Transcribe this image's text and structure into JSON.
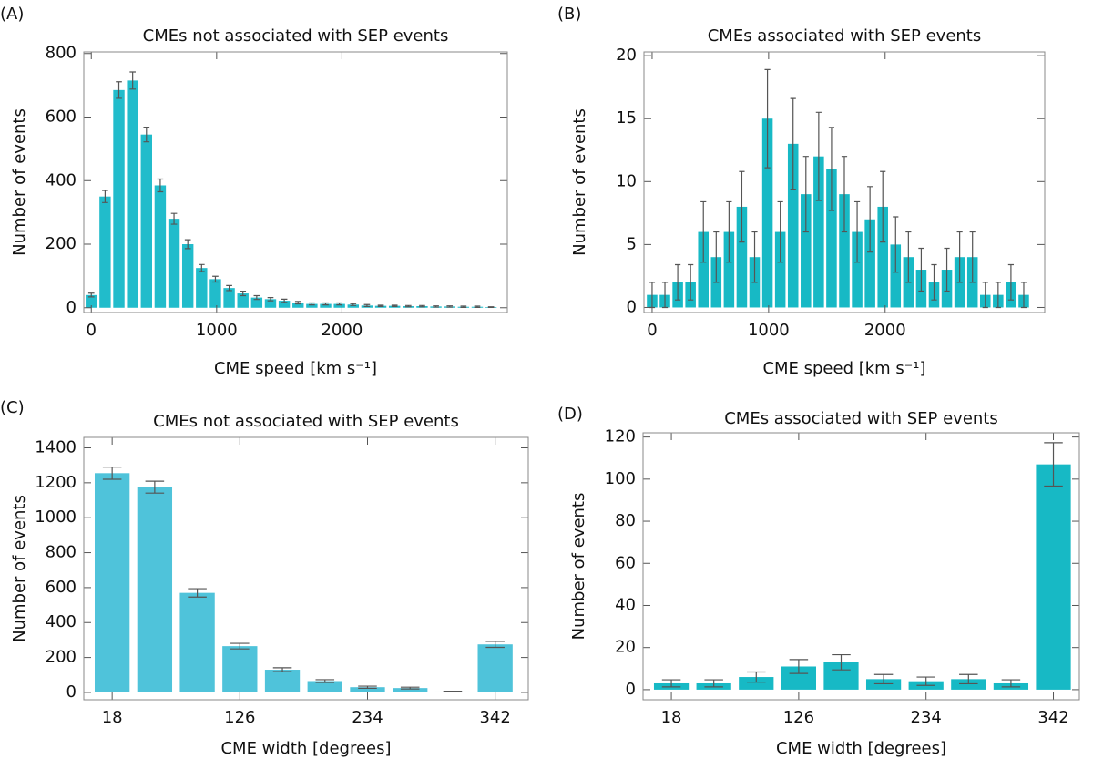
{
  "chart_data": [
    {
      "type": "histogram",
      "panel": "(A)",
      "title": "CMEs not associated with SEP events",
      "xlabel": "CME speed [km s⁻¹]",
      "ylabel": "Number of events",
      "color": "#21bccb",
      "bins": [
        -55,
        55,
        165,
        275,
        385,
        495,
        605,
        715,
        825,
        935,
        1045,
        1155,
        1265,
        1375,
        1485,
        1595,
        1705,
        1815,
        1925,
        2035,
        2145,
        2255,
        2365,
        2475,
        2585,
        2695,
        2805,
        2915,
        3025,
        3135,
        3245
      ],
      "values": [
        40,
        350,
        685,
        715,
        545,
        385,
        280,
        200,
        125,
        90,
        62,
        45,
        32,
        27,
        22,
        16,
        12,
        12,
        12,
        10,
        7,
        6,
        6,
        5,
        5,
        4,
        4,
        3,
        3,
        2
      ],
      "errors": [
        6,
        19,
        26,
        27,
        23,
        20,
        17,
        14,
        11,
        9,
        8,
        7,
        6,
        5,
        5,
        4,
        3,
        3,
        3,
        3,
        3,
        2,
        2,
        2,
        2,
        2,
        2,
        2,
        2,
        1
      ],
      "xlim": [
        -60,
        3320
      ],
      "ylim": [
        -15,
        805
      ],
      "xticks": [
        0,
        1000,
        2000
      ],
      "yticks": [
        0,
        200,
        400,
        600,
        800
      ]
    },
    {
      "type": "histogram",
      "panel": "(B)",
      "title": "CMEs associated with SEP events",
      "xlabel": "CME speed [km s⁻¹]",
      "ylabel": "Number of events",
      "color": "#17b9c5",
      "bins": [
        -55,
        55,
        165,
        275,
        385,
        495,
        605,
        715,
        825,
        935,
        1045,
        1155,
        1265,
        1375,
        1485,
        1595,
        1705,
        1815,
        1925,
        2035,
        2145,
        2255,
        2365,
        2475,
        2585,
        2695,
        2805,
        2915,
        3025,
        3135,
        3245
      ],
      "values": [
        1,
        1,
        2,
        2,
        6,
        4,
        6,
        8,
        4,
        15,
        6,
        13,
        9,
        12,
        11,
        9,
        6,
        7,
        8,
        5,
        4,
        3,
        2,
        3,
        4,
        4,
        1,
        1,
        2,
        1
      ],
      "errors": [
        1,
        1,
        1.4,
        1.4,
        2.4,
        2,
        2.4,
        2.8,
        2,
        3.9,
        2.4,
        3.6,
        3,
        3.5,
        3.3,
        3,
        2.4,
        2.6,
        2.8,
        2.2,
        2,
        1.7,
        1.4,
        1.7,
        2,
        2,
        1,
        1,
        1.4,
        1
      ],
      "xlim": [
        -70,
        3370
      ],
      "ylim": [
        -0.4,
        20.3
      ],
      "xticks": [
        0,
        1000,
        2000
      ],
      "yticks": [
        0,
        5,
        10,
        15,
        20
      ]
    },
    {
      "type": "histogram",
      "panel": "(C)",
      "title": "CMEs not associated with SEP events",
      "xlabel": "CME width [degrees]",
      "ylabel": "Number of events",
      "color": "#4fc3da",
      "bins": [
        0,
        36,
        72,
        108,
        144,
        180,
        216,
        252,
        288,
        324,
        360
      ],
      "values": [
        1255,
        1175,
        570,
        265,
        130,
        65,
        30,
        25,
        5,
        275
      ],
      "errors": [
        35,
        34,
        24,
        16,
        11,
        8,
        6,
        5,
        2,
        17
      ],
      "xlim": [
        -6,
        370
      ],
      "ylim": [
        -42,
        1460
      ],
      "xticks": [
        18,
        126,
        234,
        342
      ],
      "yticks": [
        0,
        200,
        400,
        600,
        800,
        1000,
        1200,
        1400
      ]
    },
    {
      "type": "histogram",
      "panel": "(D)",
      "title": "CMEs associated with SEP events",
      "xlabel": "CME width [degrees]",
      "ylabel": "Number of events",
      "color": "#17b9c5",
      "bins": [
        0,
        36,
        72,
        108,
        144,
        180,
        216,
        252,
        288,
        324,
        360
      ],
      "values": [
        3,
        3,
        6,
        11,
        13,
        5,
        4,
        5,
        3,
        107
      ],
      "errors": [
        1.7,
        1.7,
        2.4,
        3.3,
        3.6,
        2.2,
        2,
        2.2,
        1.7,
        10.3
      ],
      "xlim": [
        -6,
        364
      ],
      "ylim": [
        -4.8,
        122
      ],
      "xticks": [
        18,
        126,
        234,
        342
      ],
      "yticks": [
        0,
        20,
        40,
        60,
        80,
        100,
        120
      ]
    }
  ]
}
